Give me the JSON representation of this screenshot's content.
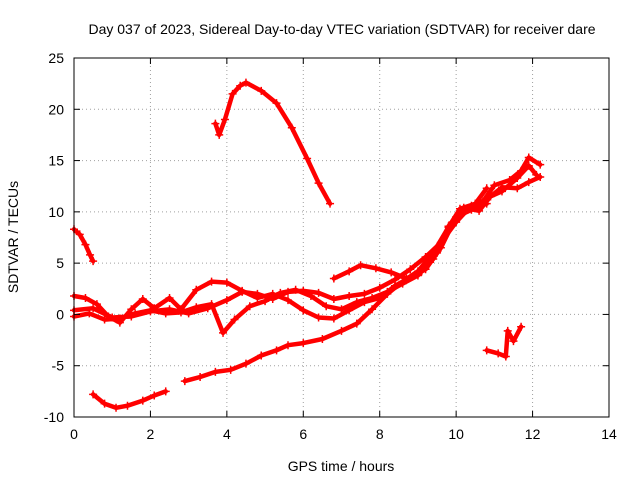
{
  "chart_data": {
    "type": "scatter",
    "title": "Day 037 of 2023, Sidereal Day-to-day VTEC variation (SDTVAR) for receiver dare",
    "xlabel": "GPS time / hours",
    "ylabel": "SDTVAR / TECUs",
    "xlim": [
      0,
      14
    ],
    "ylim": [
      -10,
      25
    ],
    "xticks": [
      0,
      2,
      4,
      6,
      8,
      10,
      12,
      14
    ],
    "yticks": [
      -10,
      -5,
      0,
      5,
      10,
      15,
      20,
      25
    ],
    "xtick_labels": [
      "0",
      "2",
      "4",
      "6",
      "8",
      "10",
      "12",
      "14"
    ],
    "ytick_labels": [
      "-10",
      "-5",
      "0",
      "5",
      "10",
      "15",
      "20",
      "25"
    ],
    "grid": true,
    "color": "#ff0000",
    "marker": "plus",
    "series": [
      {
        "name": "trace-a",
        "points": [
          [
            0.0,
            8.3
          ],
          [
            0.15,
            7.8
          ],
          [
            0.3,
            6.8
          ],
          [
            0.42,
            5.8
          ],
          [
            0.5,
            5.2
          ]
        ]
      },
      {
        "name": "trace-b",
        "points": [
          [
            0.5,
            -7.8
          ],
          [
            0.8,
            -8.7
          ],
          [
            1.1,
            -9.1
          ],
          [
            1.4,
            -8.9
          ],
          [
            1.8,
            -8.4
          ],
          [
            2.1,
            -7.9
          ],
          [
            2.4,
            -7.5
          ]
        ]
      },
      {
        "name": "trace-c",
        "points": [
          [
            2.9,
            -6.5
          ],
          [
            3.3,
            -6.1
          ],
          [
            3.7,
            -5.6
          ],
          [
            4.1,
            -5.4
          ],
          [
            4.5,
            -4.8
          ],
          [
            4.9,
            -4.0
          ],
          [
            5.3,
            -3.5
          ],
          [
            5.6,
            -3.0
          ],
          [
            6.0,
            -2.8
          ],
          [
            6.5,
            -2.4
          ],
          [
            7.0,
            -1.6
          ],
          [
            7.4,
            -0.9
          ],
          [
            7.8,
            0.5
          ],
          [
            8.2,
            2.0
          ],
          [
            8.6,
            3.2
          ],
          [
            9.0,
            4.2
          ],
          [
            9.4,
            6.0
          ],
          [
            9.8,
            8.5
          ],
          [
            10.1,
            10.3
          ],
          [
            10.5,
            10.8
          ],
          [
            10.8,
            12.3
          ]
        ]
      },
      {
        "name": "trace-d",
        "points": [
          [
            3.7,
            18.6
          ],
          [
            3.8,
            17.5
          ],
          [
            3.95,
            19.0
          ],
          [
            4.15,
            21.5
          ],
          [
            4.35,
            22.3
          ],
          [
            4.5,
            22.6
          ],
          [
            4.9,
            21.8
          ],
          [
            5.3,
            20.6
          ],
          [
            5.7,
            18.2
          ],
          [
            6.1,
            15.2
          ],
          [
            6.4,
            12.8
          ],
          [
            6.7,
            10.8
          ]
        ]
      },
      {
        "name": "trace-e",
        "points": [
          [
            0.0,
            1.8
          ],
          [
            0.3,
            1.6
          ],
          [
            0.6,
            1.0
          ],
          [
            0.9,
            -0.2
          ],
          [
            1.2,
            -0.8
          ],
          [
            1.5,
            0.5
          ],
          [
            1.8,
            1.5
          ],
          [
            2.1,
            0.6
          ],
          [
            2.5,
            1.6
          ],
          [
            2.8,
            0.5
          ],
          [
            3.2,
            2.4
          ],
          [
            3.6,
            3.2
          ],
          [
            4.0,
            3.1
          ],
          [
            4.4,
            2.3
          ],
          [
            4.8,
            1.6
          ],
          [
            5.2,
            2.0
          ],
          [
            5.6,
            1.4
          ],
          [
            6.0,
            0.4
          ],
          [
            6.4,
            -0.3
          ],
          [
            6.8,
            -0.4
          ],
          [
            7.2,
            0.4
          ],
          [
            7.6,
            1.2
          ],
          [
            8.0,
            1.6
          ],
          [
            8.4,
            2.8
          ],
          [
            8.8,
            3.6
          ],
          [
            9.2,
            4.4
          ],
          [
            9.6,
            6.5
          ],
          [
            10.0,
            9.5
          ],
          [
            10.4,
            10.2
          ],
          [
            10.8,
            10.8
          ]
        ]
      },
      {
        "name": "trace-f",
        "points": [
          [
            0.0,
            -0.2
          ],
          [
            0.4,
            0.1
          ],
          [
            0.8,
            -0.5
          ],
          [
            1.2,
            -0.4
          ],
          [
            1.6,
            0.1
          ],
          [
            2.0,
            0.4
          ],
          [
            2.4,
            0.1
          ],
          [
            2.8,
            0.2
          ],
          [
            3.2,
            0.7
          ],
          [
            3.6,
            1.0
          ],
          [
            3.9,
            -1.8
          ],
          [
            4.2,
            -0.5
          ],
          [
            4.6,
            0.8
          ],
          [
            5.0,
            1.3
          ],
          [
            5.4,
            2.1
          ],
          [
            5.8,
            2.4
          ],
          [
            6.2,
            1.8
          ],
          [
            6.6,
            0.8
          ],
          [
            7.0,
            0.5
          ],
          [
            7.4,
            1.2
          ],
          [
            7.8,
            1.6
          ],
          [
            8.2,
            2.2
          ],
          [
            8.6,
            3.0
          ],
          [
            9.0,
            3.8
          ],
          [
            9.4,
            5.4
          ],
          [
            9.8,
            8.6
          ],
          [
            10.2,
            10.4
          ],
          [
            10.6,
            10.1
          ],
          [
            10.9,
            11.5
          ],
          [
            11.2,
            12.0
          ],
          [
            11.6,
            13.3
          ],
          [
            11.9,
            14.5
          ],
          [
            12.1,
            13.6
          ]
        ]
      },
      {
        "name": "trace-g",
        "points": [
          [
            6.8,
            3.5
          ],
          [
            7.2,
            4.2
          ],
          [
            7.5,
            4.8
          ],
          [
            7.9,
            4.5
          ],
          [
            8.3,
            4.1
          ],
          [
            8.7,
            3.5
          ],
          [
            9.1,
            4.2
          ],
          [
            9.5,
            6.0
          ],
          [
            9.9,
            9.0
          ],
          [
            10.3,
            10.2
          ],
          [
            10.7,
            11.0
          ],
          [
            11.0,
            12.6
          ],
          [
            11.4,
            13.1
          ],
          [
            11.7,
            14.0
          ],
          [
            11.9,
            15.3
          ],
          [
            12.2,
            14.6
          ]
        ]
      },
      {
        "name": "trace-h",
        "points": [
          [
            0.0,
            0.4
          ],
          [
            0.5,
            0.6
          ],
          [
            1.0,
            -0.3
          ],
          [
            1.5,
            -0.2
          ],
          [
            2.0,
            0.3
          ],
          [
            2.5,
            0.5
          ],
          [
            3.0,
            0.1
          ],
          [
            3.5,
            0.6
          ],
          [
            4.0,
            1.4
          ],
          [
            4.4,
            2.2
          ],
          [
            4.8,
            2.0
          ],
          [
            5.2,
            1.5
          ],
          [
            5.6,
            2.2
          ],
          [
            6.0,
            2.3
          ],
          [
            6.4,
            2.1
          ],
          [
            6.8,
            1.5
          ],
          [
            7.2,
            1.8
          ],
          [
            7.6,
            2.0
          ],
          [
            8.0,
            2.6
          ],
          [
            8.4,
            3.4
          ],
          [
            8.8,
            4.4
          ],
          [
            9.2,
            5.6
          ],
          [
            9.6,
            7.0
          ],
          [
            10.0,
            9.0
          ],
          [
            10.4,
            10.6
          ],
          [
            10.8,
            11.2
          ],
          [
            11.2,
            12.4
          ],
          [
            11.6,
            12.3
          ],
          [
            11.9,
            12.9
          ],
          [
            12.2,
            13.4
          ]
        ]
      },
      {
        "name": "trace-i",
        "points": [
          [
            10.8,
            -3.5
          ],
          [
            11.1,
            -3.8
          ],
          [
            11.3,
            -4.1
          ],
          [
            11.35,
            -1.6
          ],
          [
            11.5,
            -2.6
          ],
          [
            11.7,
            -1.2
          ]
        ]
      }
    ]
  }
}
